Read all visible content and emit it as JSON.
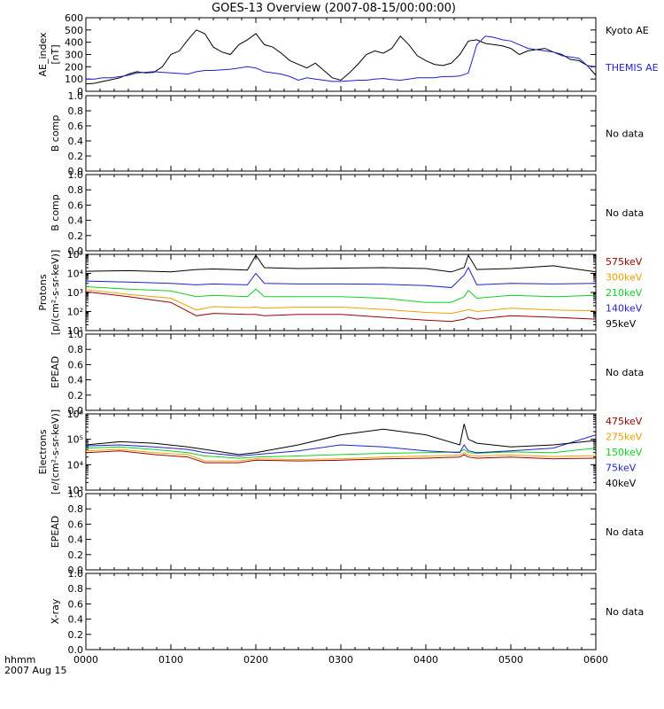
{
  "title": "GOES-13 Overview (2007-08-15/00:00:00)",
  "time_axis": {
    "ticks": [
      "0000",
      "0100",
      "0200",
      "0300",
      "0400",
      "0500",
      "0600"
    ],
    "corner_label_1": "hhmm",
    "corner_label_2": "2007 Aug 15"
  },
  "colors": {
    "black": "#000000",
    "blue": "#1f1fd0",
    "green": "#10d020",
    "orange": "#f0a000",
    "darkred": "#a00000"
  },
  "chart_data": [
    {
      "type": "line",
      "ylabel": "AE_index",
      "yunit": "[nT]",
      "ylim": [
        0,
        600
      ],
      "yticks": [
        "0",
        "100",
        "200",
        "300",
        "400",
        "500",
        "600"
      ],
      "x_hours": [
        0,
        0.1,
        0.2,
        0.3,
        0.4,
        0.5,
        0.6,
        0.7,
        0.8,
        0.9,
        1.0,
        1.1,
        1.2,
        1.3,
        1.4,
        1.5,
        1.6,
        1.7,
        1.8,
        1.9,
        2.0,
        2.1,
        2.2,
        2.3,
        2.4,
        2.5,
        2.6,
        2.7,
        2.8,
        2.9,
        3.0,
        3.1,
        3.2,
        3.3,
        3.4,
        3.5,
        3.6,
        3.7,
        3.8,
        3.9,
        4.0,
        4.1,
        4.2,
        4.3,
        4.4,
        4.5,
        4.6,
        4.7,
        4.8,
        4.9,
        5.0,
        5.1,
        5.2,
        5.3,
        5.4,
        5.5,
        5.6,
        5.7,
        5.8,
        5.9,
        6.0
      ],
      "series": [
        {
          "name": "Kyoto AE",
          "color": "#000000",
          "values": [
            60,
            65,
            80,
            95,
            110,
            140,
            160,
            150,
            155,
            200,
            300,
            330,
            420,
            500,
            470,
            360,
            320,
            300,
            380,
            420,
            470,
            380,
            360,
            310,
            250,
            220,
            190,
            230,
            170,
            110,
            90,
            150,
            220,
            300,
            330,
            310,
            350,
            450,
            380,
            290,
            250,
            220,
            210,
            230,
            300,
            410,
            420,
            390,
            380,
            370,
            350,
            300,
            330,
            340,
            350,
            320,
            300,
            260,
            250,
            210,
            130
          ]
        },
        {
          "name": "THEMIS AE",
          "color": "#1f1fd0",
          "values": [
            100,
            100,
            110,
            110,
            120,
            130,
            150,
            155,
            160,
            155,
            150,
            145,
            140,
            160,
            170,
            170,
            175,
            180,
            190,
            200,
            190,
            160,
            150,
            140,
            120,
            90,
            110,
            100,
            90,
            80,
            80,
            85,
            90,
            90,
            100,
            105,
            95,
            90,
            100,
            110,
            110,
            110,
            120,
            120,
            125,
            150,
            380,
            450,
            440,
            420,
            410,
            380,
            350,
            340,
            330,
            320,
            290,
            280,
            270,
            210,
            200
          ]
        }
      ]
    },
    {
      "type": "line",
      "ylabel": "B comp",
      "ylim": [
        0,
        1
      ],
      "yticks": [
        "0.0",
        "0.2",
        "0.4",
        "0.6",
        "0.8",
        "1.0"
      ],
      "status": "No data"
    },
    {
      "type": "line",
      "ylabel": "B comp",
      "ylim": [
        0,
        1
      ],
      "yticks": [
        "0.0",
        "0.2",
        "0.4",
        "0.6",
        "0.8",
        "1.0"
      ],
      "status": "No data"
    },
    {
      "type": "line",
      "ylabel": "Protons",
      "yunit": "[p/(cm2-s-sr-keV)]",
      "yscale": "log",
      "ylim": [
        10,
        100000
      ],
      "ytick_values": [
        10,
        100,
        1000,
        10000,
        100000
      ],
      "x_hours": [
        0,
        0.5,
        1.0,
        1.3,
        1.5,
        1.9,
        2.0,
        2.1,
        2.5,
        3.0,
        3.5,
        4.0,
        4.3,
        4.45,
        4.5,
        4.6,
        5.0,
        5.5,
        6.0
      ],
      "series": [
        {
          "name": "575keV",
          "color": "#a00000",
          "values": [
            1100,
            600,
            300,
            60,
            80,
            70,
            70,
            60,
            70,
            70,
            50,
            35,
            30,
            40,
            50,
            40,
            60,
            50,
            40
          ]
        },
        {
          "name": "300keV",
          "color": "#f0a000",
          "values": [
            1400,
            800,
            500,
            120,
            180,
            160,
            170,
            150,
            170,
            170,
            130,
            90,
            80,
            110,
            130,
            100,
            150,
            120,
            110
          ]
        },
        {
          "name": "210keV",
          "color": "#10d020",
          "values": [
            2000,
            1500,
            1200,
            600,
            700,
            600,
            1500,
            600,
            600,
            600,
            500,
            300,
            300,
            600,
            1300,
            500,
            700,
            600,
            700
          ]
        },
        {
          "name": "140keV",
          "color": "#1f1fd0",
          "values": [
            4000,
            3500,
            3000,
            2500,
            2800,
            2500,
            10000,
            3000,
            2800,
            2800,
            2700,
            2300,
            1800,
            8000,
            20000,
            2500,
            3000,
            2800,
            3000
          ]
        },
        {
          "name": "95keV",
          "color": "#000000",
          "values": [
            13000,
            14000,
            12000,
            16000,
            17000,
            15000,
            90000,
            20000,
            18000,
            19000,
            20000,
            18000,
            12000,
            20000,
            90000,
            16000,
            18000,
            25000,
            12000
          ]
        }
      ]
    },
    {
      "type": "line",
      "ylabel": "EPEAD",
      "ylim": [
        0,
        1
      ],
      "yticks": [
        "0.0",
        "0.2",
        "0.4",
        "0.6",
        "0.8",
        "1.0"
      ],
      "status": "No data"
    },
    {
      "type": "line",
      "ylabel": "Electrons",
      "yunit": "[e/(cm2-s-sr-keV)]",
      "yscale": "log",
      "ylim": [
        1000,
        1000000
      ],
      "ytick_values": [
        1000,
        10000,
        100000,
        1000000
      ],
      "x_hours": [
        0,
        0.4,
        0.8,
        1.2,
        1.4,
        1.8,
        2.0,
        2.5,
        3.0,
        3.5,
        4.0,
        4.4,
        4.45,
        4.5,
        4.6,
        5.0,
        5.5,
        6.0
      ],
      "series": [
        {
          "name": "475keV",
          "color": "#a00000",
          "values": [
            30000,
            35000,
            25000,
            20000,
            12000,
            12000,
            15000,
            14000,
            15000,
            17000,
            18000,
            20000,
            25000,
            20000,
            18000,
            20000,
            17000,
            18000
          ]
        },
        {
          "name": "275keV",
          "color": "#f0a000",
          "values": [
            35000,
            40000,
            30000,
            25000,
            14000,
            14000,
            17000,
            16000,
            17000,
            20000,
            22000,
            24000,
            30000,
            24000,
            22000,
            24000,
            21000,
            23000
          ]
        },
        {
          "name": "150keV",
          "color": "#10d020",
          "values": [
            45000,
            50000,
            40000,
            30000,
            22000,
            18000,
            20000,
            22000,
            25000,
            28000,
            30000,
            32000,
            40000,
            30000,
            28000,
            32000,
            30000,
            45000
          ]
        },
        {
          "name": "75keV",
          "color": "#1f1fd0",
          "values": [
            55000,
            60000,
            50000,
            40000,
            30000,
            22000,
            25000,
            35000,
            60000,
            50000,
            35000,
            30000,
            60000,
            35000,
            30000,
            35000,
            45000,
            150000
          ]
        },
        {
          "name": "40keV",
          "color": "#000000",
          "values": [
            60000,
            80000,
            70000,
            50000,
            40000,
            25000,
            30000,
            60000,
            150000,
            250000,
            150000,
            60000,
            400000,
            100000,
            70000,
            50000,
            60000,
            90000
          ]
        }
      ]
    },
    {
      "type": "line",
      "ylabel": "EPEAD",
      "ylim": [
        0,
        1
      ],
      "yticks": [
        "0.0",
        "0.2",
        "0.4",
        "0.6",
        "0.8",
        "1.0"
      ],
      "status": "No data"
    },
    {
      "type": "line",
      "ylabel": "X-ray",
      "ylim": [
        0,
        1
      ],
      "yticks": [
        "0.0",
        "0.2",
        "0.4",
        "0.6",
        "0.8",
        "1.0"
      ],
      "status": "No data"
    }
  ]
}
